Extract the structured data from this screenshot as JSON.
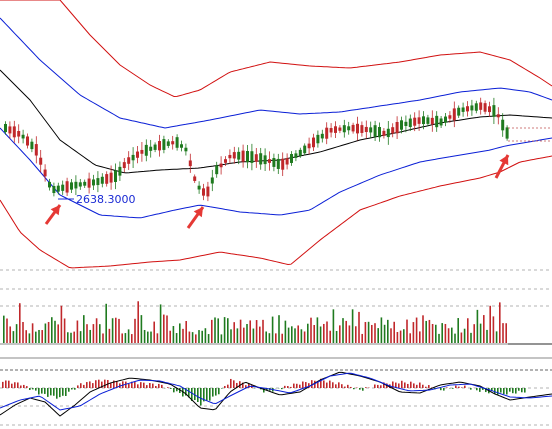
{
  "colors": {
    "background": "#ffffff",
    "up_candle": "#1f7a1f",
    "down_candle": "#c0282b",
    "ma_line": "#000000",
    "inner_band": "#0a1fd6",
    "outer_band": "#d11010",
    "annotation_text": "#1a2ad4",
    "arrow": "#e53935",
    "panel_divider": "#8a8a8a",
    "dashed_guides": "#9a9a9a",
    "macd_fast": "#000000",
    "macd_signal": "#0a1fd6"
  },
  "chart_data": {
    "type": "candlestick",
    "title": "",
    "xlabel": "",
    "ylabel": "",
    "grid": false,
    "legend": "none",
    "annotations": [
      {
        "text": "2638.3000",
        "kind": "price-label"
      }
    ],
    "markers": [
      {
        "kind": "arrow",
        "icon": "red-up-arrow-icon"
      },
      {
        "kind": "arrow",
        "icon": "red-up-arrow-icon"
      },
      {
        "kind": "arrow",
        "icon": "red-up-arrow-icon"
      }
    ],
    "panels": [
      {
        "name": "price",
        "series": [
          "candles",
          "moving-average",
          "inner-bands",
          "outer-bands"
        ]
      },
      {
        "name": "volume",
        "series": [
          "volume-bars"
        ]
      },
      {
        "name": "oscillator",
        "series": [
          "macd-histogram",
          "macd-fast",
          "macd-signal"
        ]
      }
    ],
    "low_marker_value": 2638.3
  }
}
